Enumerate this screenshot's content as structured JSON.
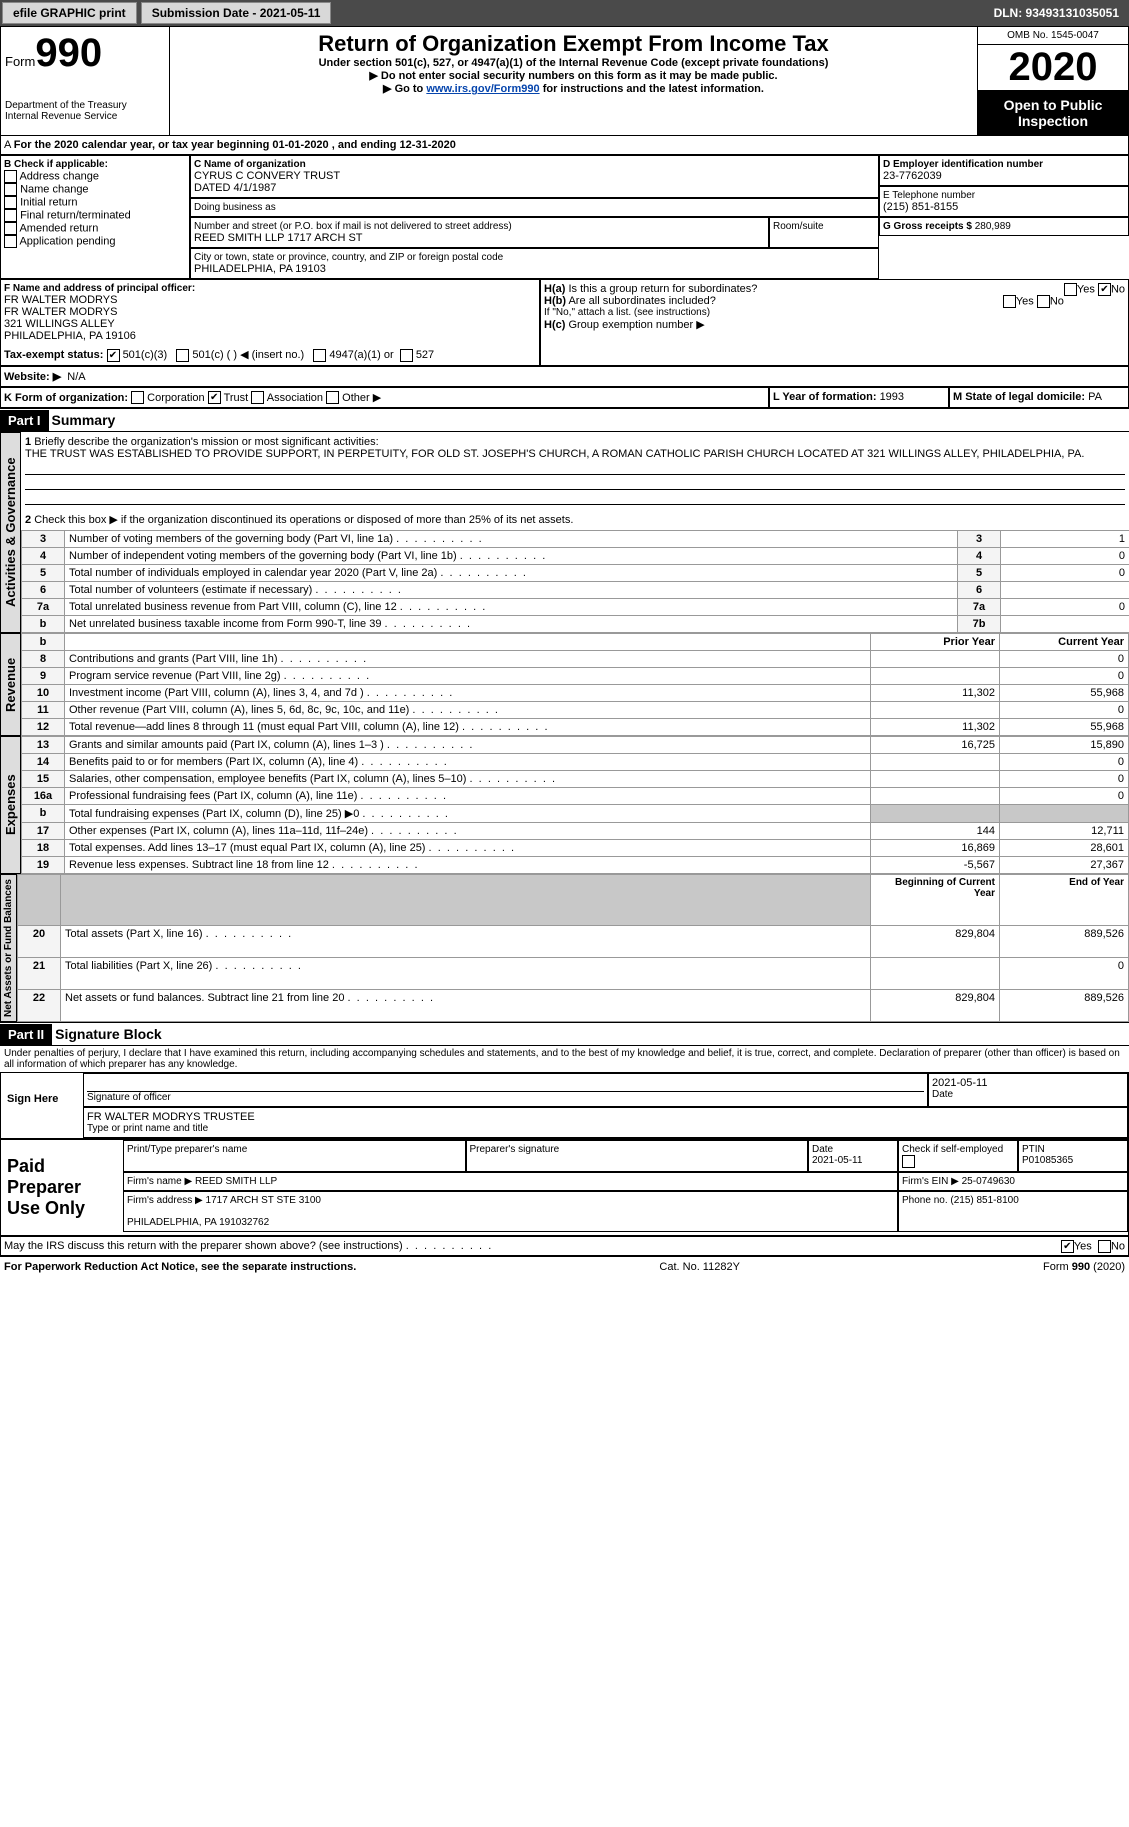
{
  "topbar": {
    "efile": "efile GRAPHIC print",
    "subdate_label": "Submission Date - 2021-05-11",
    "dln": "DLN: 93493131035051"
  },
  "header": {
    "form_label": "Form",
    "form_no": "990",
    "dept": "Department of the Treasury\nInternal Revenue Service",
    "title": "Return of Organization Exempt From Income Tax",
    "subtitle": "Under section 501(c), 527, or 4947(a)(1) of the Internal Revenue Code (except private foundations)",
    "note1": "Do not enter social security numbers on this form as it may be made public.",
    "note2_a": "Go to ",
    "note2_link": "www.irs.gov/Form990",
    "note2_b": " for instructions and the latest information.",
    "omb": "OMB No. 1545-0047",
    "year": "2020",
    "open": "Open to Public Inspection"
  },
  "secA": {
    "period": "For the 2020 calendar year, or tax year beginning 01-01-2020    , and ending 12-31-2020",
    "B_label": "B Check if applicable:",
    "B_opts": [
      "Address change",
      "Name change",
      "Initial return",
      "Final return/terminated",
      "Amended return",
      "Application pending"
    ],
    "C_label": "C Name of organization",
    "C_name": "CYRUS C CONVERY TRUST\nDATED 4/1/1987",
    "dba": "Doing business as",
    "addr_label": "Number and street (or P.O. box if mail is not delivered to street address)",
    "room": "Room/suite",
    "addr": "REED SMITH LLP 1717 ARCH ST",
    "city_label": "City or town, state or province, country, and ZIP or foreign postal code",
    "city": "PHILADELPHIA, PA  19103",
    "D_label": "D Employer identification number",
    "D_val": "23-7762039",
    "E_label": "E Telephone number",
    "E_val": "(215) 851-8155",
    "G_label": "G Gross receipts $ ",
    "G_val": "280,989",
    "F_label": "F  Name and address of principal officer:",
    "F_val": "FR WALTER MODRYS\nFR WALTER MODRYS\n321 WILLINGS ALLEY\nPHILADELPHIA, PA  19106",
    "Ha": "Is this a group return for subordinates?",
    "Hb": "Are all subordinates included?",
    "H_note": "If \"No,\" attach a list. (see instructions)",
    "Hc": "Group exemption number ▶",
    "I_label": "Tax-exempt status:",
    "I_opts": [
      "501(c)(3)",
      "501(c) (  ) ◀ (insert no.)",
      "4947(a)(1) or",
      "527"
    ],
    "J_label": "Website: ▶",
    "J_val": "N/A",
    "K_label": "K Form of organization:",
    "K_opts": [
      "Corporation",
      "Trust",
      "Association",
      "Other ▶"
    ],
    "L_label": "L Year of formation: ",
    "L_val": "1993",
    "M_label": "M State of legal domicile: ",
    "M_val": "PA"
  },
  "part1": {
    "hdr": "Part I",
    "title": "Summary",
    "l1a": "Briefly describe the organization's mission or most significant activities:",
    "l1b": "THE TRUST WAS ESTABLISHED TO PROVIDE SUPPORT, IN PERPETUITY, FOR OLD ST. JOSEPH'S CHURCH, A ROMAN CATHOLIC PARISH CHURCH LOCATED AT 321 WILLINGS ALLEY, PHILADELPHIA, PA.",
    "l2": "Check this box ▶     if the organization discontinued its operations or disposed of more than 25% of its net assets.",
    "gov": [
      {
        "n": "3",
        "t": "Number of voting members of the governing body (Part VI, line 1a)",
        "r": "3",
        "v": "1"
      },
      {
        "n": "4",
        "t": "Number of independent voting members of the governing body (Part VI, line 1b)",
        "r": "4",
        "v": "0"
      },
      {
        "n": "5",
        "t": "Total number of individuals employed in calendar year 2020 (Part V, line 2a)",
        "r": "5",
        "v": "0"
      },
      {
        "n": "6",
        "t": "Total number of volunteers (estimate if necessary)",
        "r": "6",
        "v": ""
      },
      {
        "n": "7a",
        "t": "Total unrelated business revenue from Part VIII, column (C), line 12",
        "r": "7a",
        "v": "0"
      },
      {
        "n": "b",
        "t": "Net unrelated business taxable income from Form 990-T, line 39",
        "r": "7b",
        "v": ""
      }
    ],
    "hdr_prior": "Prior Year",
    "hdr_curr": "Current Year",
    "rev": [
      {
        "n": "8",
        "t": "Contributions and grants (Part VIII, line 1h)",
        "p": "",
        "c": "0"
      },
      {
        "n": "9",
        "t": "Program service revenue (Part VIII, line 2g)",
        "p": "",
        "c": "0"
      },
      {
        "n": "10",
        "t": "Investment income (Part VIII, column (A), lines 3, 4, and 7d )",
        "p": "11,302",
        "c": "55,968"
      },
      {
        "n": "11",
        "t": "Other revenue (Part VIII, column (A), lines 5, 6d, 8c, 9c, 10c, and 11e)",
        "p": "",
        "c": "0"
      },
      {
        "n": "12",
        "t": "Total revenue—add lines 8 through 11 (must equal Part VIII, column (A), line 12)",
        "p": "11,302",
        "c": "55,968"
      }
    ],
    "exp": [
      {
        "n": "13",
        "t": "Grants and similar amounts paid (Part IX, column (A), lines 1–3 )",
        "p": "16,725",
        "c": "15,890"
      },
      {
        "n": "14",
        "t": "Benefits paid to or for members (Part IX, column (A), line 4)",
        "p": "",
        "c": "0"
      },
      {
        "n": "15",
        "t": "Salaries, other compensation, employee benefits (Part IX, column (A), lines 5–10)",
        "p": "",
        "c": "0"
      },
      {
        "n": "16a",
        "t": "Professional fundraising fees (Part IX, column (A), line 11e)",
        "p": "",
        "c": "0"
      },
      {
        "n": "b",
        "t": "Total fundraising expenses (Part IX, column (D), line 25) ▶0",
        "p": "—",
        "c": "—"
      },
      {
        "n": "17",
        "t": "Other expenses (Part IX, column (A), lines 11a–11d, 11f–24e)",
        "p": "144",
        "c": "12,711"
      },
      {
        "n": "18",
        "t": "Total expenses. Add lines 13–17 (must equal Part IX, column (A), line 25)",
        "p": "16,869",
        "c": "28,601"
      },
      {
        "n": "19",
        "t": "Revenue less expenses. Subtract line 18 from line 12",
        "p": "-5,567",
        "c": "27,367"
      }
    ],
    "hdr_boy": "Beginning of Current Year",
    "hdr_eoy": "End of Year",
    "net": [
      {
        "n": "20",
        "t": "Total assets (Part X, line 16)",
        "p": "829,804",
        "c": "889,526"
      },
      {
        "n": "21",
        "t": "Total liabilities (Part X, line 26)",
        "p": "",
        "c": "0"
      },
      {
        "n": "22",
        "t": "Net assets or fund balances. Subtract line 21 from line 20",
        "p": "829,804",
        "c": "889,526"
      }
    ],
    "vtabs": [
      "Activities & Governance",
      "Revenue",
      "Expenses",
      "Net Assets or Fund Balances"
    ]
  },
  "part2": {
    "hdr": "Part II",
    "title": "Signature Block",
    "decl": "Under penalties of perjury, I declare that I have examined this return, including accompanying schedules and statements, and to the best of my knowledge and belief, it is true, correct, and complete. Declaration of preparer (other than officer) is based on all information of which preparer has any knowledge.",
    "sign_here": "Sign Here",
    "sig_off": "Signature of officer",
    "date": "2021-05-11",
    "date_lbl": "Date",
    "officer": "FR WALTER MODRYS TRUSTEE",
    "officer_lbl": "Type or print name and title",
    "paid": "Paid Preparer Use Only",
    "pp_name_lbl": "Print/Type preparer's name",
    "pp_sig_lbl": "Preparer's signature",
    "pp_date_lbl": "Date",
    "pp_date": "2021-05-11",
    "pp_check": "Check        if self-employed",
    "pp_ptin_lbl": "PTIN",
    "pp_ptin": "P01085365",
    "firm_name_lbl": "Firm's name    ▶ ",
    "firm_name": "REED SMITH LLP",
    "firm_ein_lbl": "Firm's EIN ▶ ",
    "firm_ein": "25-0749630",
    "firm_addr_lbl": "Firm's address ▶ ",
    "firm_addr": "1717 ARCH ST STE 3100\n\nPHILADELPHIA, PA  191032762",
    "phone_lbl": "Phone no. ",
    "phone": "(215) 851-8100",
    "discuss": "May the IRS discuss this return with the preparer shown above? (see instructions)"
  },
  "footer": {
    "pra": "For Paperwork Reduction Act Notice, see the separate instructions.",
    "cat": "Cat. No. 11282Y",
    "form": "Form 990 (2020)"
  },
  "yes": "Yes",
  "no": "No"
}
